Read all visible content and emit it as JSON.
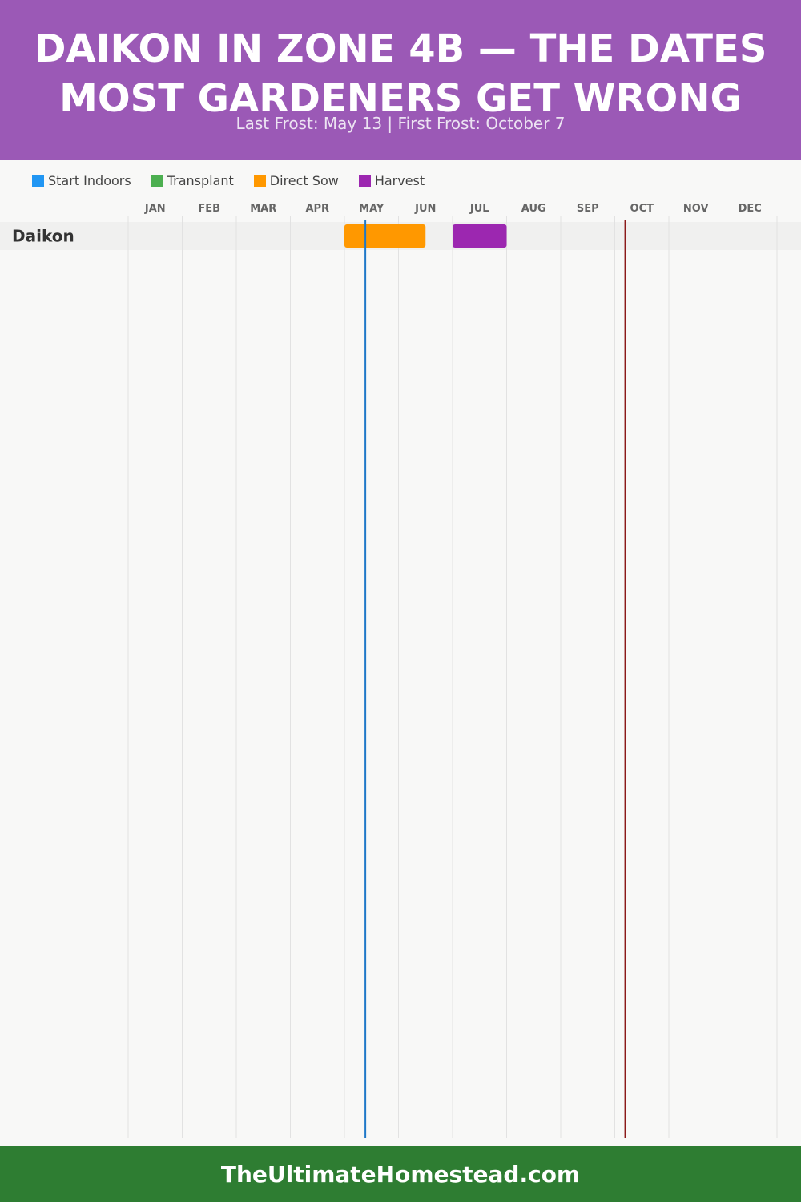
{
  "header": {
    "title": "Daikon in Zone 4b — The Dates Most Gardeners Get Wrong",
    "subtitle": "Last Frost: May 13 | First Frost: October 7"
  },
  "legend": [
    {
      "label": "Start Indoors",
      "color": "#2196f3"
    },
    {
      "label": "Transplant",
      "color": "#4caf50"
    },
    {
      "label": "Direct Sow",
      "color": "#ff9800"
    },
    {
      "label": "Harvest",
      "color": "#9c27b0"
    }
  ],
  "chart_data": {
    "type": "gantt",
    "categories": [
      "JAN",
      "FEB",
      "MAR",
      "APR",
      "MAY",
      "JUN",
      "JUL",
      "AUG",
      "SEP",
      "OCT",
      "NOV",
      "DEC"
    ],
    "x_unit": "month",
    "rows": [
      {
        "label": "Daikon",
        "tasks": [
          {
            "phase": "Direct Sow",
            "start": "May 1",
            "end": "June 15",
            "color": "#ff9800"
          },
          {
            "phase": "Harvest",
            "start": "July 1",
            "end": "July 31",
            "color": "#9c27b0"
          }
        ]
      }
    ],
    "markers": [
      {
        "label": "Last Frost",
        "date": "May 13",
        "color": "#1f78c8"
      },
      {
        "label": "First Frost",
        "date": "October 7",
        "color": "#8b1a1a"
      }
    ],
    "grid": true
  },
  "footer": {
    "text": "TheUltimateHomestead.com"
  }
}
